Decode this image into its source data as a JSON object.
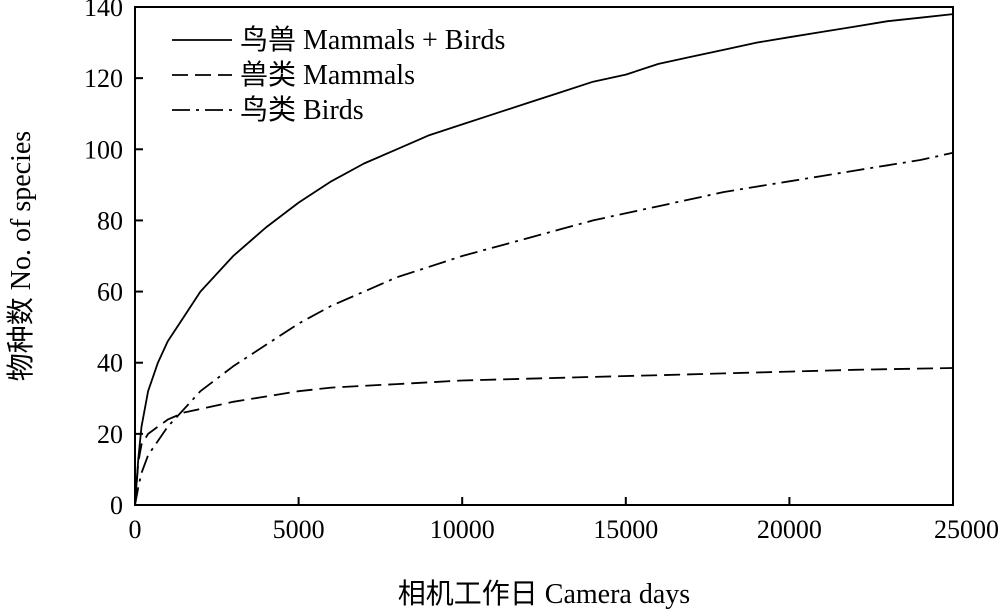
{
  "chart_data": {
    "type": "line",
    "xlabel": "相机工作日 Camera days",
    "ylabel": "物种数 No. of species",
    "xlim": [
      0,
      25000
    ],
    "ylim": [
      0,
      140
    ],
    "x_ticks": [
      0,
      5000,
      10000,
      15000,
      20000,
      25000
    ],
    "y_ticks": [
      0,
      20,
      40,
      60,
      80,
      100,
      120,
      140
    ],
    "grid": false,
    "legend_position": "top-left",
    "series": [
      {
        "name": "鸟兽 Mammals + Birds",
        "dash": "solid",
        "x": [
          0,
          100,
          200,
          400,
          700,
          1000,
          1500,
          2000,
          3000,
          4000,
          5000,
          6000,
          7000,
          8000,
          9000,
          10000,
          11000,
          12000,
          13000,
          14000,
          15000,
          16000,
          17000,
          18000,
          19000,
          20000,
          21000,
          22000,
          23000,
          24000,
          25000
        ],
        "y": [
          0,
          13,
          22,
          32,
          40,
          46,
          53,
          60,
          70,
          78,
          85,
          91,
          96,
          100,
          104,
          107,
          110,
          113,
          116,
          119,
          121,
          124,
          126,
          128,
          130,
          131.5,
          133,
          134.5,
          136,
          137,
          138
        ]
      },
      {
        "name": "兽类 Mammals",
        "dash": "dashed",
        "x": [
          0,
          100,
          200,
          400,
          700,
          1000,
          1500,
          2000,
          3000,
          4000,
          5000,
          6000,
          7000,
          8000,
          9000,
          10000,
          12000,
          14000,
          16000,
          18000,
          20000,
          22000,
          25000
        ],
        "y": [
          0,
          12,
          17,
          20,
          22,
          24,
          26,
          27,
          29,
          30.5,
          32,
          33,
          33.5,
          34,
          34.5,
          35,
          35.5,
          36,
          36.5,
          37,
          37.5,
          38,
          38.5
        ]
      },
      {
        "name": "鸟类 Birds",
        "dash": "dashdot",
        "x": [
          0,
          100,
          200,
          400,
          700,
          1000,
          1500,
          2000,
          3000,
          4000,
          5000,
          6000,
          7000,
          8000,
          9000,
          10000,
          11000,
          12000,
          13000,
          14000,
          15000,
          16000,
          17000,
          18000,
          19000,
          20000,
          21000,
          22000,
          23000,
          24000,
          25000
        ],
        "y": [
          0,
          5,
          9,
          14,
          18,
          22,
          27,
          32,
          39,
          45,
          51,
          56,
          60,
          64,
          67,
          70,
          72.5,
          75,
          77.5,
          80,
          82,
          84,
          86,
          88,
          89.5,
          91,
          92.5,
          94,
          95.5,
          97,
          99
        ]
      }
    ]
  }
}
